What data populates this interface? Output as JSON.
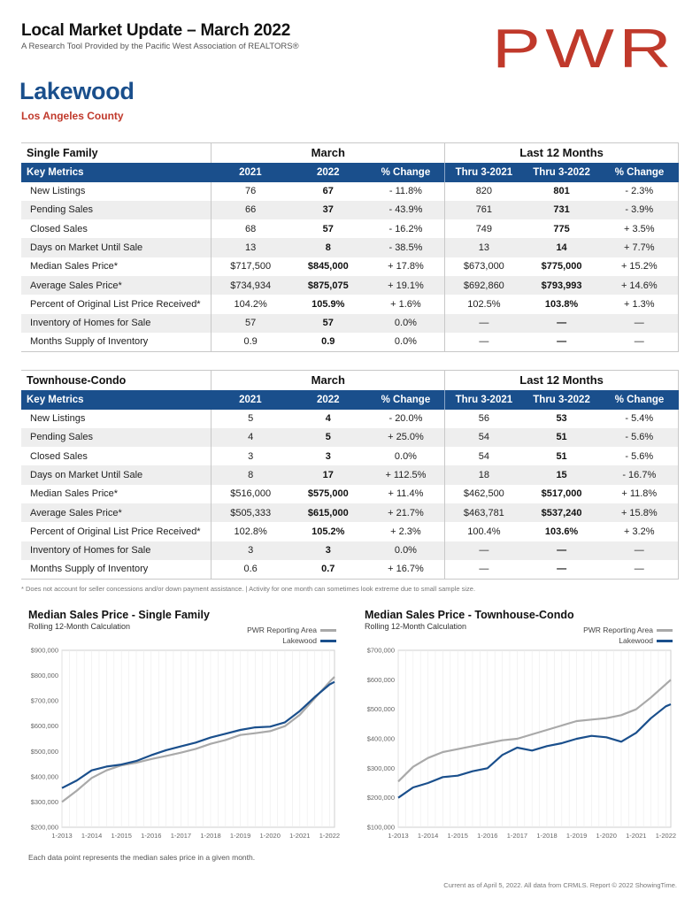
{
  "header": {
    "title": "Local Market Update – March 2022",
    "subtitle": "A Research Tool Provided by the Pacific West Association of REALTORS®",
    "logo_text": "PWR",
    "logo_color": "#c0392b"
  },
  "location": {
    "city": "Lakewood",
    "county": "Los Angeles County"
  },
  "colors": {
    "header_blue": "#1a4f8c",
    "pwr_gray": "#a9a9a9",
    "lakewood_blue": "#1a4f8c"
  },
  "tables": [
    {
      "section": "Single Family",
      "group_march": "March",
      "group_12m": "Last 12 Months",
      "columns": [
        "Key Metrics",
        "2021",
        "2022",
        "% Change",
        "Thru 3-2021",
        "Thru 3-2022",
        "% Change"
      ],
      "rows": [
        [
          "New Listings",
          "76",
          "67",
          "- 11.8%",
          "820",
          "801",
          "- 2.3%"
        ],
        [
          "Pending Sales",
          "66",
          "37",
          "- 43.9%",
          "761",
          "731",
          "- 3.9%"
        ],
        [
          "Closed Sales",
          "68",
          "57",
          "- 16.2%",
          "749",
          "775",
          "+ 3.5%"
        ],
        [
          "Days on Market Until Sale",
          "13",
          "8",
          "- 38.5%",
          "13",
          "14",
          "+ 7.7%"
        ],
        [
          "Median Sales Price*",
          "$717,500",
          "$845,000",
          "+ 17.8%",
          "$673,000",
          "$775,000",
          "+ 15.2%"
        ],
        [
          "Average Sales Price*",
          "$734,934",
          "$875,075",
          "+ 19.1%",
          "$692,860",
          "$793,993",
          "+ 14.6%"
        ],
        [
          "Percent of Original List Price Received*",
          "104.2%",
          "105.9%",
          "+ 1.6%",
          "102.5%",
          "103.8%",
          "+ 1.3%"
        ],
        [
          "Inventory of Homes for Sale",
          "57",
          "57",
          "0.0%",
          "—",
          "—",
          "—"
        ],
        [
          "Months Supply of Inventory",
          "0.9",
          "0.9",
          "0.0%",
          "—",
          "—",
          "—"
        ]
      ]
    },
    {
      "section": "Townhouse-Condo",
      "group_march": "March",
      "group_12m": "Last 12 Months",
      "columns": [
        "Key Metrics",
        "2021",
        "2022",
        "% Change",
        "Thru 3-2021",
        "Thru 3-2022",
        "% Change"
      ],
      "rows": [
        [
          "New Listings",
          "5",
          "4",
          "- 20.0%",
          "56",
          "53",
          "- 5.4%"
        ],
        [
          "Pending Sales",
          "4",
          "5",
          "+ 25.0%",
          "54",
          "51",
          "- 5.6%"
        ],
        [
          "Closed Sales",
          "3",
          "3",
          "0.0%",
          "54",
          "51",
          "- 5.6%"
        ],
        [
          "Days on Market Until Sale",
          "8",
          "17",
          "+ 112.5%",
          "18",
          "15",
          "- 16.7%"
        ],
        [
          "Median Sales Price*",
          "$516,000",
          "$575,000",
          "+ 11.4%",
          "$462,500",
          "$517,000",
          "+ 11.8%"
        ],
        [
          "Average Sales Price*",
          "$505,333",
          "$615,000",
          "+ 21.7%",
          "$463,781",
          "$537,240",
          "+ 15.8%"
        ],
        [
          "Percent of Original List Price Received*",
          "102.8%",
          "105.2%",
          "+ 2.3%",
          "100.4%",
          "103.6%",
          "+ 3.2%"
        ],
        [
          "Inventory of Homes for Sale",
          "3",
          "3",
          "0.0%",
          "—",
          "—",
          "—"
        ],
        [
          "Months Supply of Inventory",
          "0.6",
          "0.7",
          "+ 16.7%",
          "—",
          "—",
          "—"
        ]
      ]
    }
  ],
  "footnote": "* Does not account for seller concessions and/or down payment assistance. | Activity for one month can sometimes look extreme due to small sample size.",
  "chart_data": [
    {
      "type": "line",
      "title": "Median Sales Price - Single Family",
      "subtitle": "Rolling 12-Month Calculation",
      "x_ticks": [
        "1-2013",
        "1-2014",
        "1-2015",
        "1-2016",
        "1-2017",
        "1-2018",
        "1-2019",
        "1-2020",
        "1-2021",
        "1-2022"
      ],
      "y_ticks": [
        "$200,000",
        "$300,000",
        "$400,000",
        "$500,000",
        "$600,000",
        "$700,000",
        "$800,000",
        "$900,000"
      ],
      "ylim": [
        200000,
        900000
      ],
      "x": [
        "1-2013",
        "7-2013",
        "1-2014",
        "7-2014",
        "1-2015",
        "7-2015",
        "1-2016",
        "7-2016",
        "1-2017",
        "7-2017",
        "1-2018",
        "7-2018",
        "1-2019",
        "7-2019",
        "1-2020",
        "7-2020",
        "1-2021",
        "7-2021",
        "1-2022",
        "3-2022"
      ],
      "series": [
        {
          "name": "PWR Reporting Area",
          "color": "#a9a9a9",
          "values": [
            300000,
            345000,
            395000,
            425000,
            445000,
            455000,
            470000,
            482000,
            495000,
            510000,
            530000,
            545000,
            565000,
            572000,
            580000,
            600000,
            645000,
            710000,
            775000,
            795000
          ]
        },
        {
          "name": "Lakewood",
          "color": "#1a4f8c",
          "values": [
            355000,
            385000,
            425000,
            440000,
            448000,
            462000,
            485000,
            505000,
            520000,
            535000,
            555000,
            570000,
            585000,
            595000,
            598000,
            615000,
            660000,
            715000,
            765000,
            775000
          ]
        }
      ]
    },
    {
      "type": "line",
      "title": "Median Sales Price - Townhouse-Condo",
      "subtitle": "Rolling 12-Month Calculation",
      "x_ticks": [
        "1-2013",
        "1-2014",
        "1-2015",
        "1-2016",
        "1-2017",
        "1-2018",
        "1-2019",
        "1-2020",
        "1-2021",
        "1-2022"
      ],
      "y_ticks": [
        "$100,000",
        "$200,000",
        "$300,000",
        "$400,000",
        "$500,000",
        "$600,000",
        "$700,000"
      ],
      "ylim": [
        100000,
        700000
      ],
      "x": [
        "1-2013",
        "7-2013",
        "1-2014",
        "7-2014",
        "1-2015",
        "7-2015",
        "1-2016",
        "7-2016",
        "1-2017",
        "7-2017",
        "1-2018",
        "7-2018",
        "1-2019",
        "7-2019",
        "1-2020",
        "7-2020",
        "1-2021",
        "7-2021",
        "1-2022",
        "3-2022"
      ],
      "series": [
        {
          "name": "PWR Reporting Area",
          "color": "#a9a9a9",
          "values": [
            255000,
            305000,
            335000,
            355000,
            365000,
            375000,
            385000,
            395000,
            400000,
            415000,
            430000,
            445000,
            460000,
            465000,
            470000,
            480000,
            500000,
            540000,
            585000,
            600000
          ]
        },
        {
          "name": "Lakewood",
          "color": "#1a4f8c",
          "values": [
            200000,
            235000,
            250000,
            270000,
            275000,
            290000,
            300000,
            345000,
            370000,
            360000,
            375000,
            385000,
            400000,
            410000,
            405000,
            390000,
            420000,
            470000,
            510000,
            517000
          ]
        }
      ]
    }
  ],
  "notes": {
    "data_point": "Each data point represents the median sales price in a given month.",
    "source": "Current as of April 5, 2022. All data from CRMLS. Report © 2022 ShowingTime."
  }
}
